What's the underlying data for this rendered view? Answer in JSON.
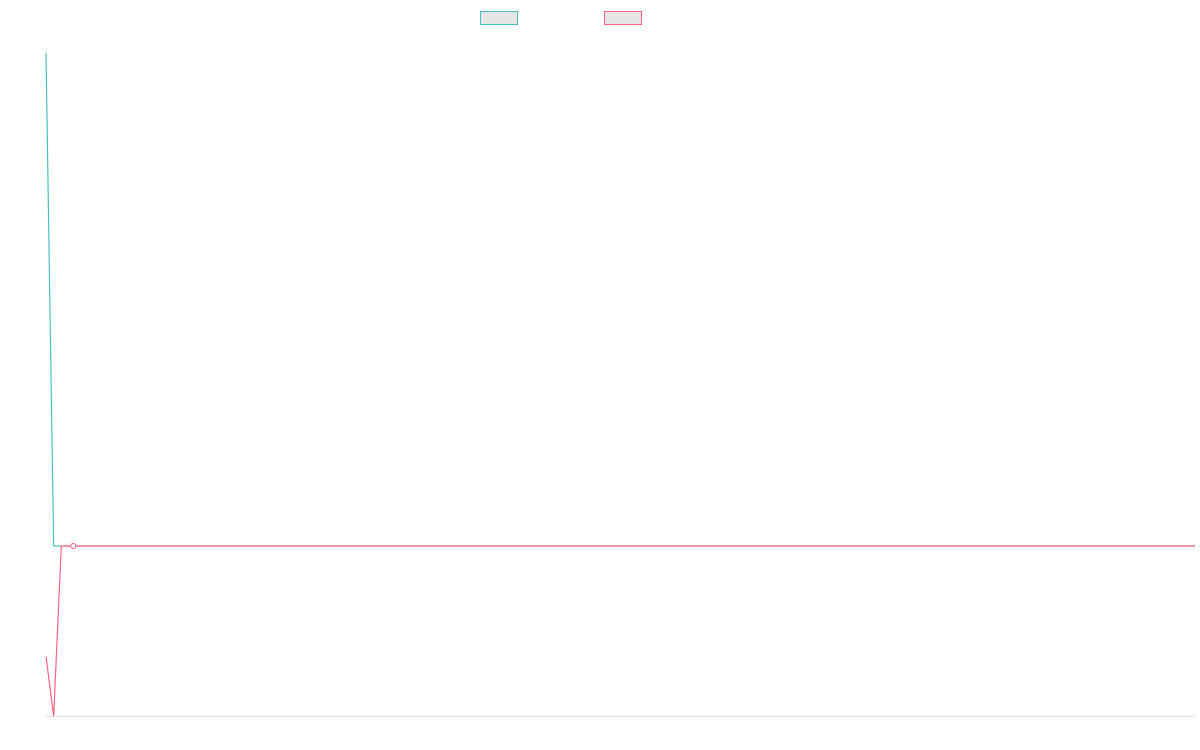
{
  "legend": {
    "items": [
      {
        "label": "",
        "color": "#4bc0c0",
        "fill": "#e6e6e6"
      },
      {
        "label": "",
        "color": "#ff6384",
        "fill": "#e6e6e6"
      }
    ]
  },
  "chart_data": {
    "type": "line",
    "title": "",
    "xlabel": "",
    "ylabel": "",
    "grid": false,
    "legend_position": "top",
    "xlim": [
      0,
      150
    ],
    "ylim": [
      -2,
      6
    ],
    "x": [
      0,
      1,
      2,
      3,
      4,
      5,
      10,
      20,
      40,
      60,
      80,
      100,
      120,
      140,
      150
    ],
    "series": [
      {
        "color": "#4bc0c0",
        "values": [
          5.8,
          0.0,
          0.0,
          0.0,
          0.0,
          0.0,
          0.0,
          0.0,
          0.0,
          0.0,
          0.0,
          0.0,
          0.0,
          0.0,
          0.0
        ]
      },
      {
        "color": "#ff6384",
        "values": [
          -1.3,
          -2.0,
          0.0,
          0.0,
          0.0,
          0.0,
          0.0,
          0.0,
          0.0,
          0.0,
          0.0,
          0.0,
          0.0,
          0.0,
          0.0
        ]
      }
    ]
  }
}
